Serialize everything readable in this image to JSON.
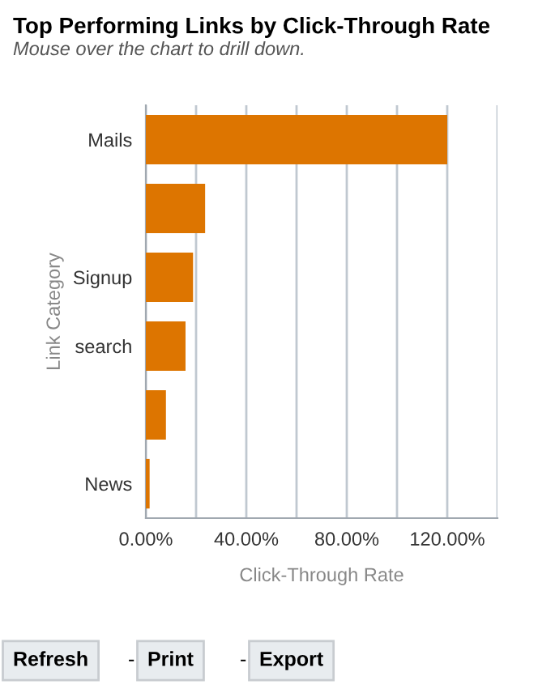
{
  "chart_data": {
    "type": "bar",
    "orientation": "horizontal",
    "title": "Top Performing Links by Click-Through Rate",
    "subtitle": "Mouse over the chart to drill down.",
    "xlabel": "Click-Through Rate",
    "ylabel": "Link Category",
    "categories": [
      "Mails",
      null,
      "Signup",
      "search",
      null,
      "News"
    ],
    "values": [
      120,
      23.6,
      18.8,
      15.8,
      8,
      1.5
    ],
    "color": "#dd7500",
    "xlim": [
      0,
      140
    ],
    "xticks": [
      {
        "value": 0,
        "label": "0.00%"
      },
      {
        "value": 20,
        "label": null
      },
      {
        "value": 40,
        "label": "40.00%"
      },
      {
        "value": 60,
        "label": null
      },
      {
        "value": 80,
        "label": "80.00%"
      },
      {
        "value": 100,
        "label": null
      },
      {
        "value": 120,
        "label": "120.00%"
      },
      {
        "value": 140,
        "label": null
      }
    ],
    "grid": "x",
    "annotations": [
      "Refresh",
      "-",
      "Print",
      "-",
      "Export"
    ]
  }
}
